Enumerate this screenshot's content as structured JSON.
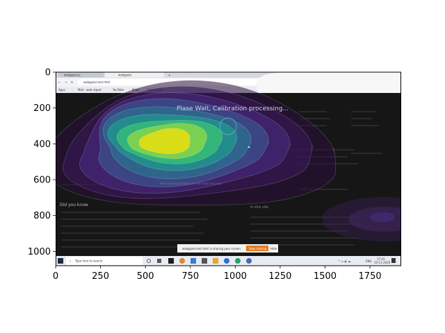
{
  "browser": {
    "tabs": [
      "webgazer.js",
      "webgazer"
    ],
    "address": "webgazer.test.html",
    "bookmarks": [
      "Apps",
      "Mail - web report",
      "YouTube",
      "Maps",
      "Class Time"
    ],
    "menu_icons": [
      "back-icon",
      "forward-icon",
      "reload-icon",
      "star-icon",
      "profile-icon",
      "menu-icon"
    ]
  },
  "overlay": {
    "message": "Plase Wait, Calibration processing...",
    "accent": "#d9dd17"
  },
  "page": {
    "section_heading": "Did you know"
  },
  "share_bar": {
    "text": "webgazer.test.html is sharing your screen",
    "stop_label": "Stop sharing",
    "hide_label": "Hide"
  },
  "taskbar": {
    "search_placeholder": "Type here to search",
    "time": "17:01",
    "date": "10-11-2020",
    "lang": "ENG"
  },
  "chart_data": {
    "type": "heatmap",
    "x_ticks": [
      "0",
      "250",
      "500",
      "750",
      "1000",
      "1250",
      "1500",
      "1750"
    ],
    "y_ticks": [
      "0",
      "200",
      "400",
      "600",
      "800",
      "1000"
    ],
    "xlim": [
      0,
      1920
    ],
    "ylim": [
      1080,
      0
    ],
    "colormap": "viridis",
    "peak": [
      640,
      390
    ],
    "secondary_blob": [
      1820,
      820
    ]
  }
}
